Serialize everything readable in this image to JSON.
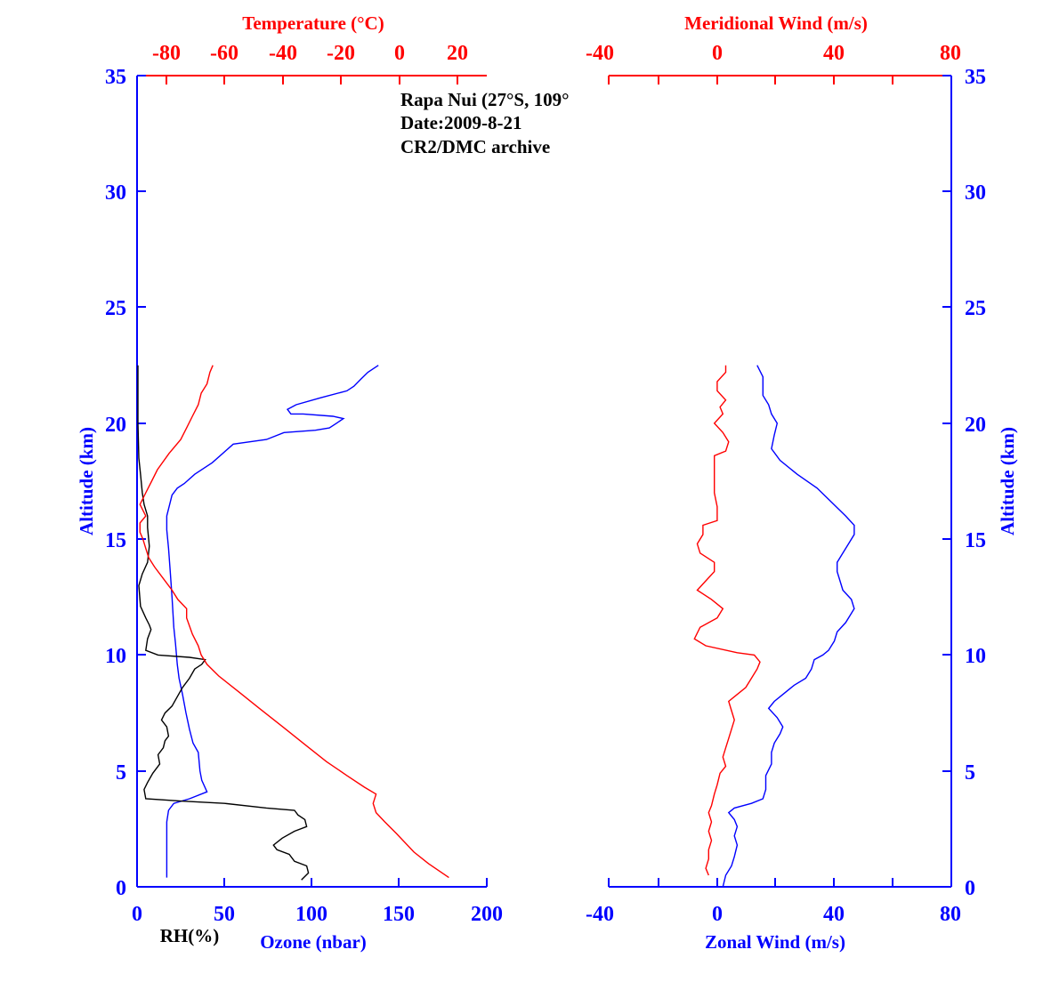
{
  "colors": {
    "blue": "#0000ff",
    "red": "#ff0000",
    "black": "#000000"
  },
  "annotation": {
    "line1": "Rapa Nui (27°S, 109°",
    "line2": "Date:2009-8-21",
    "line3": "CR2/DMC archive"
  },
  "chart_data": [
    {
      "type": "line",
      "panel": "left",
      "xlabel": "Ozone (nbar)",
      "xlabel_secondary": "RH(%)",
      "x2label": "Temperature (°C)",
      "ylabel": "Altitude (km)",
      "xlim": [
        0,
        200
      ],
      "x2lim": [
        -90,
        30
      ],
      "ylim": [
        0,
        35
      ],
      "xticks": [
        0,
        50,
        100,
        150,
        200
      ],
      "xtick_labels": [
        "0",
        "50",
        "100",
        "150",
        "200"
      ],
      "x2ticks": [
        -80,
        -60,
        -40,
        -20,
        0,
        20
      ],
      "x2tick_labels": [
        "-80",
        "-60",
        "-40",
        "-20",
        "0",
        "20"
      ],
      "yticks": [
        0,
        5,
        10,
        15,
        20,
        25,
        30,
        35
      ],
      "ytick_labels": [
        "0",
        "5",
        "10",
        "15",
        "20",
        "25",
        "30",
        "35"
      ],
      "series": [
        {
          "color": "#0000ff",
          "axis": "x",
          "points": [
            [
              17,
              0.4
            ],
            [
              17,
              1.5
            ],
            [
              17,
              2.8
            ],
            [
              18,
              3.3
            ],
            [
              21,
              3.6
            ],
            [
              30,
              3.8
            ],
            [
              40,
              4.1
            ],
            [
              37,
              4.6
            ],
            [
              36,
              5.0
            ],
            [
              35,
              5.8
            ],
            [
              32,
              6.2
            ],
            [
              30,
              6.8
            ],
            [
              28,
              7.5
            ],
            [
              26,
              8.3
            ],
            [
              24,
              9.0
            ],
            [
              23,
              9.6
            ],
            [
              22,
              10.5
            ],
            [
              21,
              11.2
            ],
            [
              20,
              12.5
            ],
            [
              19,
              13.6
            ],
            [
              18,
              14.6
            ],
            [
              17,
              15.4
            ],
            [
              17,
              16.0
            ],
            [
              20,
              16.9
            ],
            [
              23,
              17.2
            ],
            [
              27,
              17.4
            ],
            [
              33,
              17.8
            ],
            [
              43,
              18.3
            ],
            [
              55,
              19.1
            ],
            [
              74,
              19.3
            ],
            [
              84,
              19.6
            ],
            [
              102,
              19.7
            ],
            [
              110,
              19.8
            ],
            [
              114,
              20.0
            ],
            [
              118,
              20.2
            ],
            [
              112,
              20.3
            ],
            [
              95,
              20.4
            ],
            [
              88,
              20.4
            ],
            [
              86,
              20.6
            ],
            [
              91,
              20.8
            ],
            [
              105,
              21.1
            ],
            [
              120,
              21.4
            ],
            [
              124,
              21.6
            ],
            [
              128,
              21.9
            ],
            [
              132,
              22.2
            ],
            [
              138,
              22.5
            ]
          ]
        },
        {
          "color": "#000000",
          "axis": "x",
          "points": [
            [
              94,
              0.3
            ],
            [
              98,
              0.6
            ],
            [
              97,
              0.9
            ],
            [
              90,
              1.1
            ],
            [
              87,
              1.4
            ],
            [
              80,
              1.6
            ],
            [
              78,
              1.8
            ],
            [
              83,
              2.1
            ],
            [
              90,
              2.4
            ],
            [
              97,
              2.6
            ],
            [
              96,
              2.9
            ],
            [
              92,
              3.1
            ],
            [
              90,
              3.3
            ],
            [
              74,
              3.4
            ],
            [
              50,
              3.6
            ],
            [
              25,
              3.7
            ],
            [
              5,
              3.8
            ],
            [
              4,
              4.2
            ],
            [
              6,
              4.5
            ],
            [
              9,
              4.9
            ],
            [
              13,
              5.3
            ],
            [
              12,
              5.7
            ],
            [
              15,
              6.0
            ],
            [
              16,
              6.3
            ],
            [
              18,
              6.5
            ],
            [
              17,
              6.9
            ],
            [
              14,
              7.2
            ],
            [
              16,
              7.5
            ],
            [
              20,
              7.8
            ],
            [
              23,
              8.2
            ],
            [
              26,
              8.6
            ],
            [
              30,
              9.0
            ],
            [
              33,
              9.4
            ],
            [
              37,
              9.6
            ],
            [
              39,
              9.8
            ],
            [
              30,
              9.9
            ],
            [
              12,
              10.0
            ],
            [
              5,
              10.2
            ],
            [
              6,
              10.7
            ],
            [
              8,
              11.1
            ],
            [
              7,
              11.3
            ],
            [
              5,
              11.6
            ],
            [
              2,
              12.1
            ],
            [
              1,
              13.0
            ],
            [
              3,
              13.5
            ],
            [
              6,
              14.0
            ],
            [
              7,
              14.7
            ],
            [
              6,
              15.5
            ],
            [
              6,
              16.0
            ],
            [
              4,
              16.5
            ],
            [
              3,
              17.0
            ],
            [
              2,
              17.8
            ],
            [
              1,
              18.5
            ],
            [
              0.5,
              20.0
            ],
            [
              0.5,
              21.5
            ],
            [
              0.5,
              22.5
            ]
          ]
        },
        {
          "color": "#ff0000",
          "axis": "x2",
          "points": [
            [
              17,
              0.4
            ],
            [
              10,
              1.0
            ],
            [
              5,
              1.5
            ],
            [
              -1,
              2.3
            ],
            [
              -5,
              2.8
            ],
            [
              -8,
              3.2
            ],
            [
              -9,
              3.6
            ],
            [
              -8,
              4.0
            ],
            [
              -12,
              4.3
            ],
            [
              -18,
              4.8
            ],
            [
              -25,
              5.4
            ],
            [
              -32,
              6.1
            ],
            [
              -40,
              6.9
            ],
            [
              -48,
              7.7
            ],
            [
              -55,
              8.4
            ],
            [
              -62,
              9.1
            ],
            [
              -66,
              9.6
            ],
            [
              -68,
              10.0
            ],
            [
              -69,
              10.4
            ],
            [
              -71,
              10.9
            ],
            [
              -73,
              11.6
            ],
            [
              -73,
              12.0
            ],
            [
              -76,
              12.4
            ],
            [
              -78,
              12.8
            ],
            [
              -81,
              13.3
            ],
            [
              -84,
              13.8
            ],
            [
              -86,
              14.2
            ],
            [
              -87,
              14.6
            ],
            [
              -88,
              15.0
            ],
            [
              -89,
              15.3
            ],
            [
              -89,
              15.7
            ],
            [
              -87,
              16.0
            ],
            [
              -89,
              16.5
            ],
            [
              -87,
              17.0
            ],
            [
              -85,
              17.5
            ],
            [
              -83,
              18.0
            ],
            [
              -79,
              18.7
            ],
            [
              -75,
              19.3
            ],
            [
              -73,
              19.8
            ],
            [
              -71,
              20.3
            ],
            [
              -69,
              20.8
            ],
            [
              -68,
              21.3
            ],
            [
              -66,
              21.7
            ],
            [
              -65,
              22.2
            ],
            [
              -64,
              22.5
            ]
          ]
        }
      ]
    },
    {
      "type": "line",
      "panel": "right",
      "xlabel": "Zonal Wind (m/s)",
      "x2label": "Meridional Wind (m/s)",
      "ylabel": "Altitude (km)",
      "xlim": [
        -40,
        80
      ],
      "x2lim": [
        -40,
        80
      ],
      "ylim": [
        0,
        35
      ],
      "xticks": [
        -40,
        0,
        40,
        80
      ],
      "xtick_labels": [
        "-40",
        "0",
        "40",
        "80"
      ],
      "x2ticks": [
        -40,
        0,
        40,
        80
      ],
      "x2tick_labels": [
        "-40",
        "0",
        "40",
        "80"
      ],
      "yticks": [
        0,
        5,
        10,
        15,
        20,
        25,
        30,
        35
      ],
      "ytick_labels": [
        "0",
        "5",
        "10",
        "15",
        "20",
        "25",
        "30",
        "35"
      ],
      "series": [
        {
          "color": "#0000ff",
          "axis": "x",
          "points": [
            [
              0,
              0
            ],
            [
              1,
              0.5
            ],
            [
              3,
              0.9
            ],
            [
              4,
              1.3
            ],
            [
              5,
              1.8
            ],
            [
              4,
              2.2
            ],
            [
              5,
              2.6
            ],
            [
              4,
              2.9
            ],
            [
              2,
              3.2
            ],
            [
              4,
              3.4
            ],
            [
              10,
              3.6
            ],
            [
              14,
              3.8
            ],
            [
              15,
              4.2
            ],
            [
              15,
              4.8
            ],
            [
              17,
              5.3
            ],
            [
              17,
              5.8
            ],
            [
              18,
              6.2
            ],
            [
              20,
              6.6
            ],
            [
              21,
              6.9
            ],
            [
              19,
              7.3
            ],
            [
              16,
              7.7
            ],
            [
              18,
              8.0
            ],
            [
              21,
              8.3
            ],
            [
              25,
              8.7
            ],
            [
              29,
              9.0
            ],
            [
              31,
              9.4
            ],
            [
              32,
              9.8
            ],
            [
              35,
              10.0
            ],
            [
              37,
              10.2
            ],
            [
              39,
              10.6
            ],
            [
              40,
              11.0
            ],
            [
              43,
              11.4
            ],
            [
              45,
              11.8
            ],
            [
              46,
              12.0
            ],
            [
              45,
              12.4
            ],
            [
              42,
              12.8
            ],
            [
              41,
              13.2
            ],
            [
              40,
              13.6
            ],
            [
              40,
              14.0
            ],
            [
              42,
              14.4
            ],
            [
              44,
              14.8
            ],
            [
              46,
              15.2
            ],
            [
              46,
              15.6
            ],
            [
              43,
              16.0
            ],
            [
              38,
              16.6
            ],
            [
              33,
              17.2
            ],
            [
              26,
              17.8
            ],
            [
              20,
              18.4
            ],
            [
              17,
              18.9
            ],
            [
              18,
              19.5
            ],
            [
              19,
              20.0
            ],
            [
              17,
              20.4
            ],
            [
              16,
              20.8
            ],
            [
              14,
              21.2
            ],
            [
              14,
              21.6
            ],
            [
              14,
              22.0
            ],
            [
              12,
              22.5
            ]
          ]
        },
        {
          "color": "#ff0000",
          "axis": "x2",
          "points": [
            [
              -5,
              0.5
            ],
            [
              -6,
              0.8
            ],
            [
              -5,
              1.2
            ],
            [
              -5,
              1.6
            ],
            [
              -4,
              2.0
            ],
            [
              -5,
              2.4
            ],
            [
              -4,
              2.8
            ],
            [
              -5,
              3.2
            ],
            [
              -4,
              3.5
            ],
            [
              -3,
              4.0
            ],
            [
              -2,
              4.4
            ],
            [
              -1,
              4.9
            ],
            [
              1,
              5.2
            ],
            [
              0,
              5.6
            ],
            [
              1,
              6.0
            ],
            [
              2,
              6.4
            ],
            [
              3,
              6.8
            ],
            [
              4,
              7.2
            ],
            [
              3,
              7.6
            ],
            [
              2,
              8.0
            ],
            [
              5,
              8.3
            ],
            [
              8,
              8.6
            ],
            [
              10,
              9.0
            ],
            [
              12,
              9.4
            ],
            [
              13,
              9.7
            ],
            [
              11,
              10.0
            ],
            [
              5,
              10.1
            ],
            [
              -6,
              10.4
            ],
            [
              -10,
              10.7
            ],
            [
              -8,
              11.2
            ],
            [
              -2,
              11.6
            ],
            [
              0,
              12.0
            ],
            [
              -4,
              12.4
            ],
            [
              -9,
              12.8
            ],
            [
              -6,
              13.2
            ],
            [
              -3,
              13.6
            ],
            [
              -3,
              14.0
            ],
            [
              -8,
              14.4
            ],
            [
              -9,
              14.8
            ],
            [
              -7,
              15.2
            ],
            [
              -7,
              15.6
            ],
            [
              -2,
              15.8
            ],
            [
              -2,
              16.4
            ],
            [
              -3,
              17.0
            ],
            [
              -3,
              17.6
            ],
            [
              -3,
              18.2
            ],
            [
              -3,
              18.6
            ],
            [
              1,
              18.8
            ],
            [
              2,
              19.2
            ],
            [
              0,
              19.6
            ],
            [
              -3,
              20.0
            ],
            [
              0,
              20.4
            ],
            [
              -1,
              20.7
            ],
            [
              1,
              21.0
            ],
            [
              -2,
              21.4
            ],
            [
              -2,
              21.8
            ],
            [
              1,
              22.2
            ],
            [
              1,
              22.5
            ]
          ]
        }
      ]
    }
  ]
}
